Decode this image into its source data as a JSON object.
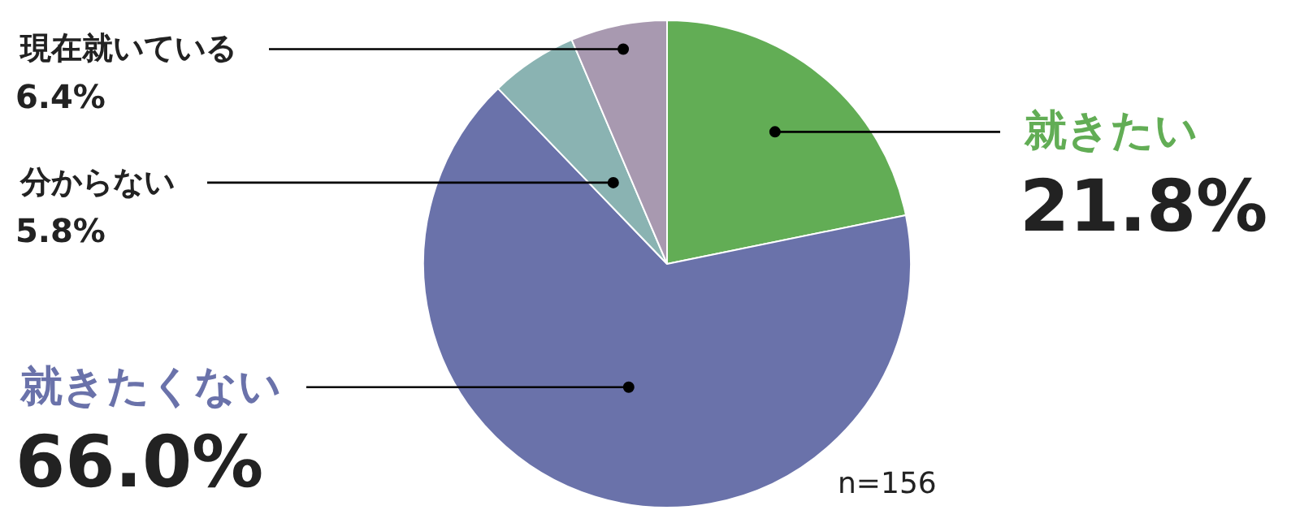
{
  "chart_data": {
    "type": "pie",
    "categories": [
      "就きたい",
      "就きたくない",
      "分からない",
      "現在就いている"
    ],
    "values": [
      21.8,
      66.0,
      5.8,
      6.4
    ],
    "colors": [
      "#62ad55",
      "#6a72aa",
      "#8ab3b2",
      "#a899b0"
    ],
    "value_labels": [
      "21.8%",
      "66.0%",
      "5.8%",
      "6.4%"
    ],
    "annotations": [
      "n=156"
    ]
  }
}
